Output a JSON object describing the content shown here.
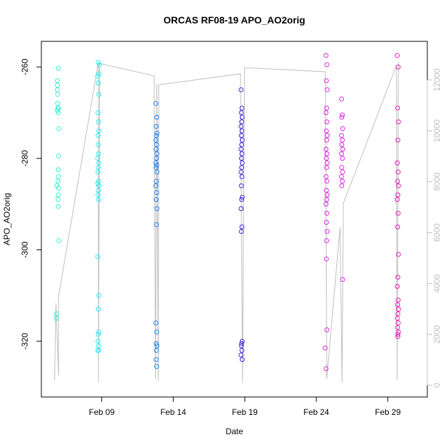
{
  "chart_data": {
    "type": "scatter",
    "title": "ORCAS RF08-19 APO_AO2orig",
    "x_label": "Date",
    "y_label": "APO_AO2orig",
    "xlim": [
      4.78,
      31.76
    ],
    "ylim": [
      -332.2,
      -254.4
    ],
    "y2lim": [
      -460,
      13517
    ],
    "xticks": [
      {
        "value": 9,
        "label": "Feb 09"
      },
      {
        "value": 14,
        "label": "Feb 14"
      },
      {
        "value": 19,
        "label": "Feb 19"
      },
      {
        "value": 24,
        "label": "Feb 24"
      },
      {
        "value": 29,
        "label": "Feb 29"
      }
    ],
    "yticks": [
      -260,
      -280,
      -300,
      -320
    ],
    "y2ticks": [
      0,
      2000,
      4000,
      6000,
      8000,
      10000,
      12000
    ],
    "y2_color": "#bebebe",
    "series": [
      {
        "color": "#33eed0",
        "x": [
          5.96,
          5.9,
          5.9,
          5.9,
          5.92,
          5.92,
          5.94,
          5.9,
          5.98,
          5.96,
          6.0,
          5.98,
          5.96,
          5.98,
          5.94,
          5.86,
          5.98,
          5.96,
          5.94,
          5.96,
          6.0,
          5.84,
          5.82
        ],
        "values": [
          -260.3,
          -263,
          -264,
          -265,
          -266,
          -268,
          -269,
          -269.5,
          -269,
          -270,
          -273.5,
          -279.5,
          -282.5,
          -284,
          -285,
          -286,
          -286.5,
          -288,
          -289,
          -290.5,
          -298,
          -314,
          -315
        ]
      },
      {
        "color": "#22eeee",
        "x": [
          8.76,
          8.84,
          8.8,
          8.72,
          8.76,
          8.8,
          8.74,
          8.78,
          8.8,
          8.74,
          8.76,
          8.78,
          8.72,
          8.8,
          8.76,
          8.74,
          8.78,
          8.72,
          8.8,
          8.76,
          8.74,
          8.78,
          8.72,
          8.8,
          8.76,
          8.8,
          8.74,
          8.78,
          8.72,
          8.8,
          8.76
        ],
        "values": [
          -259,
          -259.5,
          -261.5,
          -262,
          -263.5,
          -266,
          -270,
          -272,
          -274,
          -275,
          -277,
          -279,
          -280,
          -281,
          -282,
          -283,
          -285,
          -285.5,
          -286,
          -287,
          -288,
          -289,
          -301.5,
          -310,
          -313,
          -318,
          -320,
          -321,
          -322,
          -322,
          -318.5
        ]
      },
      {
        "color": "#1e80ee",
        "x": [
          12.78,
          12.84,
          12.8,
          12.86,
          12.82,
          12.78,
          12.84,
          12.8,
          12.86,
          12.82,
          12.78,
          12.84,
          12.8,
          12.86,
          12.82,
          12.78,
          12.84,
          12.8,
          12.86,
          12.82,
          12.78,
          12.84,
          12.8,
          12.86,
          12.82,
          12.8,
          12.84
        ],
        "values": [
          -268,
          -271,
          -273,
          -274.5,
          -275,
          -276,
          -277,
          -278,
          -279,
          -280,
          -281,
          -281.5,
          -282,
          -283,
          -285,
          -286,
          -287.5,
          -289,
          -291,
          -294.5,
          -316,
          -318,
          -320.5,
          -321,
          -322,
          -324,
          -325.5
        ]
      },
      {
        "color": "#4422dd",
        "x": [
          18.74,
          18.8,
          18.76,
          18.82,
          18.78,
          18.74,
          18.8,
          18.76,
          18.82,
          18.78,
          18.74,
          18.8,
          18.76,
          18.82,
          18.78,
          18.74,
          18.8,
          18.76,
          18.82,
          18.78,
          18.74,
          18.8,
          18.76,
          18.82,
          18.78,
          18.76,
          18.8,
          18.74,
          18.82
        ],
        "values": [
          -265,
          -269,
          -270,
          -271,
          -272,
          -273,
          -274,
          -275,
          -276,
          -277,
          -278,
          -279,
          -280,
          -281,
          -282,
          -283,
          -284,
          -286,
          -288.5,
          -289,
          -291,
          -295,
          -296,
          -320,
          -320.5,
          -321,
          -322,
          -323,
          -324
        ]
      },
      {
        "color": "#dd22dd",
        "x": [
          24.68,
          24.74,
          24.7,
          24.76,
          24.72,
          24.68,
          24.74,
          24.7,
          24.76,
          24.72,
          24.68,
          24.74,
          24.7,
          24.76,
          24.72,
          24.68,
          24.74,
          24.7,
          24.76,
          24.72,
          24.68,
          24.74,
          24.7,
          24.76,
          24.72,
          24.7,
          24.74,
          24.62,
          24.68
        ],
        "values": [
          -257.5,
          -259.5,
          -263,
          -265,
          -269,
          -270,
          -272,
          -274,
          -275,
          -276,
          -278,
          -279,
          -280,
          -281,
          -282,
          -284,
          -285,
          -287,
          -288,
          -289,
          -290,
          -292,
          -294,
          -296,
          -298,
          -302,
          -317.5,
          -321.5,
          -326
        ]
      },
      {
        "color": "#dd22ee",
        "x": [
          25.76,
          25.82,
          25.78,
          25.84,
          25.76,
          25.82,
          25.78,
          25.84,
          25.76,
          25.82,
          25.78,
          25.84,
          25.76,
          25.82,
          25.78,
          25.84
        ],
        "values": [
          -267,
          -270.5,
          -271,
          -273.5,
          -275,
          -276,
          -277,
          -278,
          -279,
          -280,
          -282,
          -283,
          -284,
          -285,
          -286,
          -306.5
        ]
      },
      {
        "color": "#ee11bb",
        "x": [
          29.66,
          29.72,
          29.68,
          29.74,
          29.7,
          29.66,
          29.72,
          29.68,
          29.74,
          29.7,
          29.66,
          29.72,
          29.68,
          29.74,
          29.7,
          29.66,
          29.72,
          29.68,
          29.74,
          29.7,
          29.66,
          29.72,
          29.68,
          29.74,
          29.7,
          29.7
        ],
        "values": [
          -257.5,
          -260,
          -269,
          -272,
          -276,
          -281,
          -283,
          -285,
          -286,
          -288,
          -289,
          -292,
          -295,
          -301,
          -306,
          -308,
          -311,
          -312,
          -313,
          -314,
          -315,
          -316,
          -317,
          -318,
          -318.5,
          -319
        ]
      },
      {
        "type": "line",
        "axis": "y2",
        "color": "#bebebe",
        "x": [
          5.71,
          5.8,
          5.98,
          5.98,
          8.77,
          8.77,
          8.86,
          12.67,
          12.76,
          12.85,
          12.95,
          12.99,
          18.7,
          18.84,
          18.98,
          24.64,
          24.73,
          25.66,
          25.8,
          25.89,
          29.6,
          29.65,
          29.74
        ],
        "values": [
          190,
          3223,
          379,
          3494,
          12701,
          108,
          12647,
          12160,
          244,
          11835,
          190,
          11808,
          12241,
          108,
          12485,
          12322,
          244,
          6202,
          108,
          7150,
          12566,
          190,
          12701
        ]
      }
    ]
  }
}
